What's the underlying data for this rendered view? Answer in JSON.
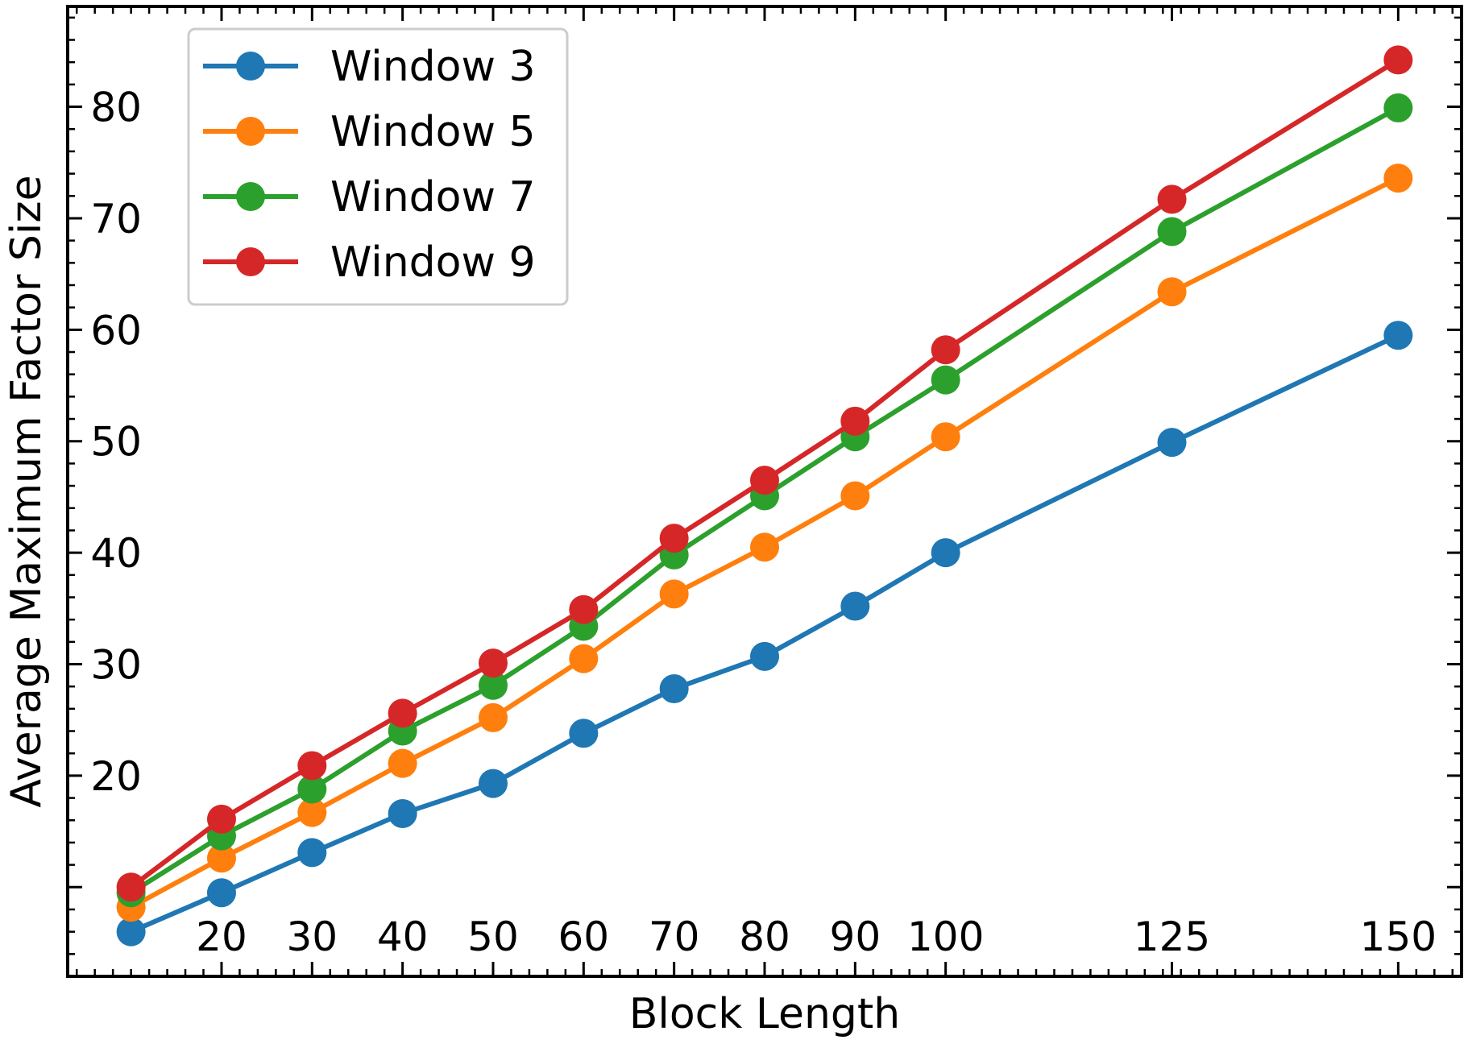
{
  "chart_data": {
    "type": "line",
    "xlabel": "Block Length",
    "ylabel": "Average Maximum Factor Size",
    "x": [
      10,
      20,
      30,
      40,
      50,
      60,
      70,
      80,
      90,
      100,
      125,
      150
    ],
    "xticks": [
      20,
      30,
      40,
      50,
      60,
      70,
      80,
      90,
      100,
      125,
      150
    ],
    "yticks": [
      20,
      30,
      40,
      50,
      60,
      70,
      80
    ],
    "xlim": [
      3,
      157
    ],
    "ylim": [
      2,
      89
    ],
    "grid": false,
    "legend_position": "top-left",
    "series": [
      {
        "name": "Window 3",
        "color": "#1f77b4",
        "values": [
          6.0,
          9.5,
          13.1,
          16.6,
          19.3,
          23.8,
          27.8,
          30.7,
          35.2,
          40.0,
          49.9,
          59.5
        ]
      },
      {
        "name": "Window 5",
        "color": "#ff7f0e",
        "values": [
          8.2,
          12.6,
          16.7,
          21.1,
          25.2,
          30.5,
          36.3,
          40.5,
          45.1,
          50.4,
          63.4,
          73.6
        ]
      },
      {
        "name": "Window 7",
        "color": "#2ca02c",
        "values": [
          9.5,
          14.6,
          18.8,
          24.0,
          28.1,
          33.4,
          39.8,
          45.1,
          50.4,
          55.5,
          68.8,
          79.9
        ]
      },
      {
        "name": "Window 9",
        "color": "#d62728",
        "values": [
          10.0,
          16.1,
          20.9,
          25.6,
          30.1,
          34.9,
          41.3,
          46.5,
          51.8,
          58.2,
          71.7,
          84.2
        ]
      }
    ]
  }
}
